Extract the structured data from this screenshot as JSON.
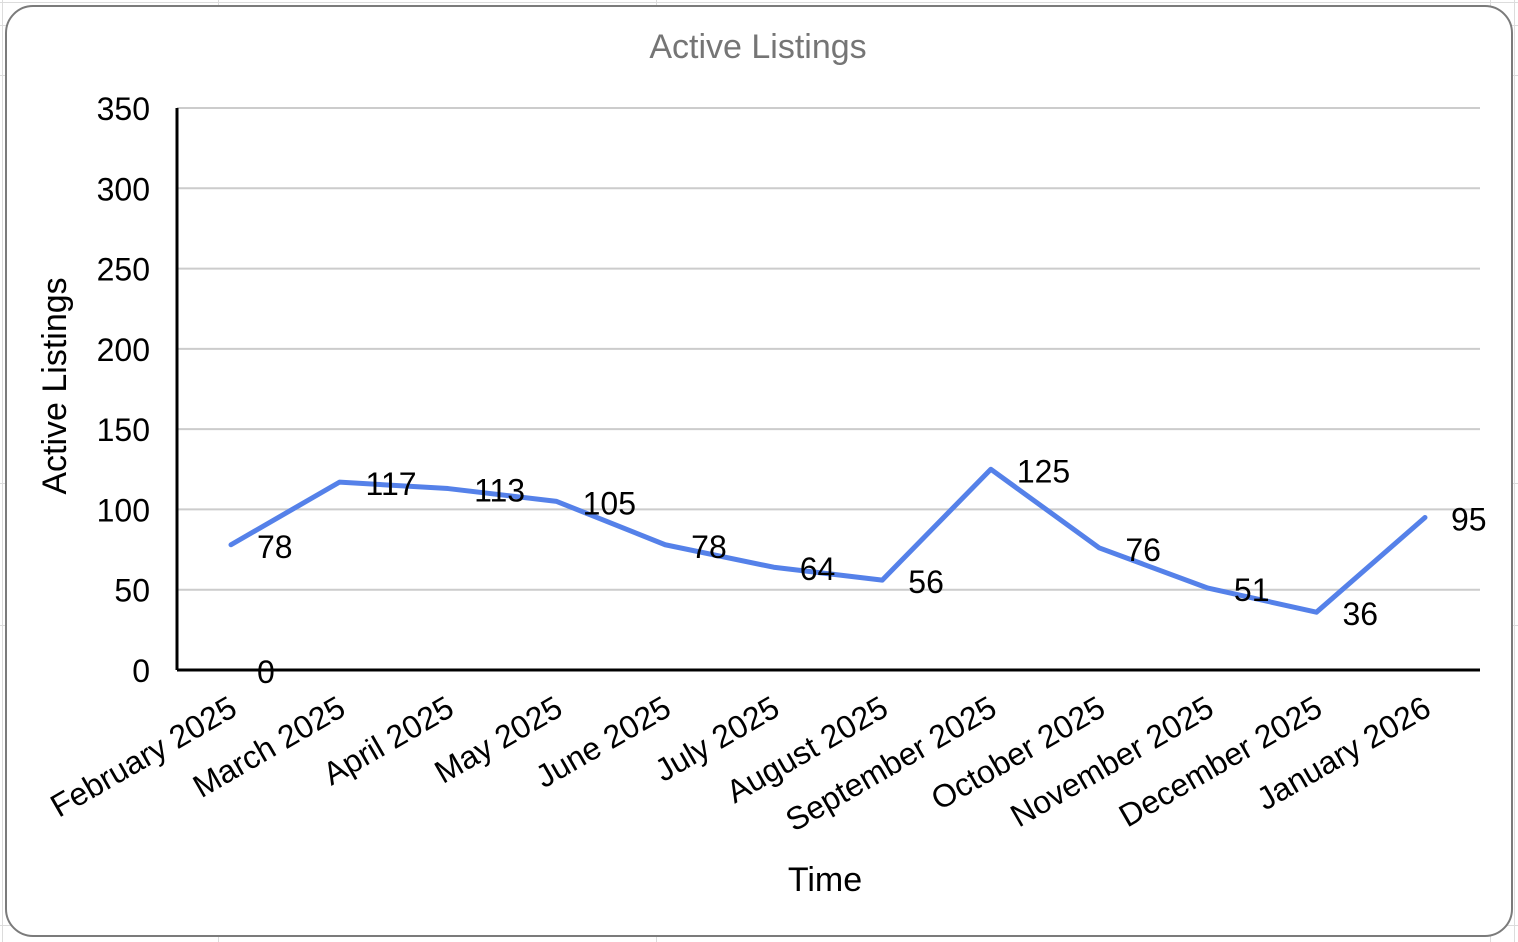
{
  "chart": {
    "title": "Active Listings",
    "x_axis_title": "Time",
    "y_axis_title": "Active Listings"
  },
  "chart_data": {
    "type": "line",
    "title": "Active Listings",
    "xlabel": "Time",
    "ylabel": "Active Listings",
    "categories": [
      "February 2025",
      "March 2025",
      "April 2025",
      "May 2025",
      "June 2025",
      "July 2025",
      "August 2025",
      "September 2025",
      "October 2025",
      "November 2025",
      "December 2025",
      "January 2026"
    ],
    "series": [
      {
        "name": "Active Listings",
        "values": [
          78,
          117,
          113,
          105,
          78,
          64,
          56,
          125,
          76,
          51,
          36,
          95
        ]
      }
    ],
    "annotations": [
      {
        "category": "February 2025",
        "value": 0,
        "text": "0"
      }
    ],
    "ylim": [
      0,
      350
    ],
    "y_ticks": [
      0,
      50,
      100,
      150,
      200,
      250,
      300,
      350
    ],
    "grid": true,
    "legend_position": "none",
    "data_labels": true,
    "colors": {
      "line": "#5581e9",
      "grid": "#cccccc",
      "axis": "#000000",
      "text": "#000000",
      "title": "#757575"
    }
  }
}
